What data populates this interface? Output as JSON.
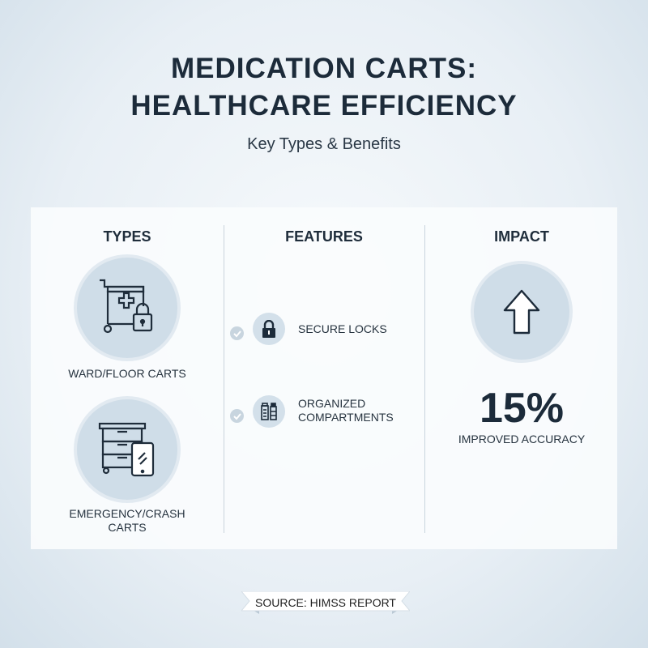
{
  "header": {
    "title_line1": "MEDICATION CARTS:",
    "title_line2": "HEALTHCARE EFFICIENCY",
    "subtitle": "Key Types & Benefits"
  },
  "types": {
    "heading": "TYPES",
    "items": [
      {
        "label": "WARD/FLOOR CARTS",
        "icon": "cart-with-cross-and-lock-icon"
      },
      {
        "label_line1": "EMERGENCY/CRASH",
        "label_line2": "CARTS",
        "icon": "drawer-cabinet-with-tablet-icon"
      }
    ]
  },
  "features": {
    "heading": "FEATURES",
    "items": [
      {
        "label": "SECURE LOCKS",
        "icon": "padlock-icon"
      },
      {
        "label_line1": "ORGANIZED",
        "label_line2": "COMPARTMENTS",
        "icon": "medicine-bottles-icon"
      }
    ]
  },
  "impact": {
    "heading": "IMPACT",
    "icon": "arrow-up-icon",
    "value": "15%",
    "label": "IMPROVED ACCURACY"
  },
  "footer": {
    "source": "SOURCE: HIMSS REPORT"
  },
  "colors": {
    "text": "#1c2b3a",
    "circle": "#cfdde8"
  }
}
